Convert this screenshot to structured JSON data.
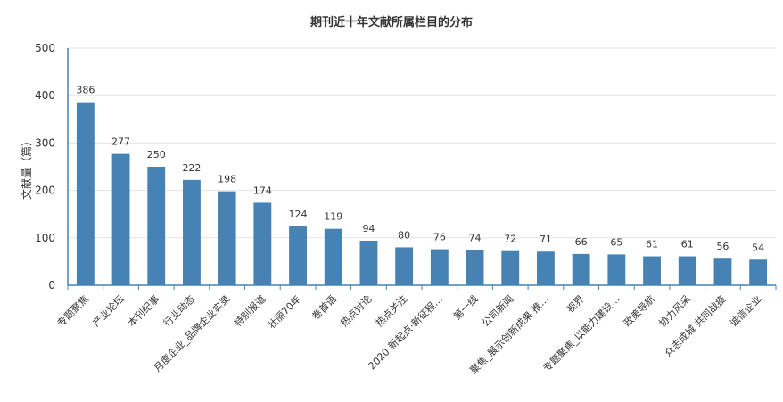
{
  "chart_data": {
    "type": "bar",
    "title": "期刊近十年文献所属栏目的分布",
    "ylabel": "文献量（篇）",
    "xlabel": "",
    "ylim": [
      0,
      500
    ],
    "yticks": [
      0,
      100,
      200,
      300,
      400,
      500
    ],
    "grid": true,
    "bar_color": "#4682b4",
    "categories": [
      "专题聚焦",
      "产业论坛",
      "本刊纪事",
      "行业动态",
      "月度企业_品牌企业实录",
      "特别报道",
      "壮丽70年",
      "卷首语",
      "热点讨论",
      "热点关注",
      "2020 新起点·新征程…",
      "第一线",
      "公司新闻",
      "聚焦_展示创新成果 推…",
      "视界",
      "专题聚焦_以能力建设…",
      "政策导航",
      "协力风采",
      "众志成城 共同战疫",
      "诚信企业"
    ],
    "values": [
      386,
      277,
      250,
      222,
      198,
      174,
      124,
      119,
      94,
      80,
      76,
      74,
      72,
      71,
      66,
      65,
      61,
      61,
      56,
      54
    ]
  }
}
